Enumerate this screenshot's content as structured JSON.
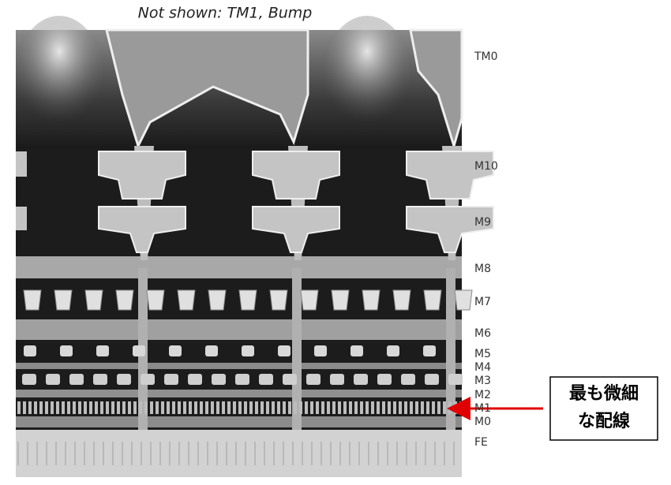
{
  "caption": "Not shown: TM1, Bump",
  "layers": [
    "TM0",
    "M10",
    "M9",
    "M8",
    "M7",
    "M6",
    "M5",
    "M4",
    "M3",
    "M2",
    "M1",
    "M0",
    "FE"
  ],
  "callout": {
    "lines": [
      "最も微細",
      "な配線"
    ]
  }
}
